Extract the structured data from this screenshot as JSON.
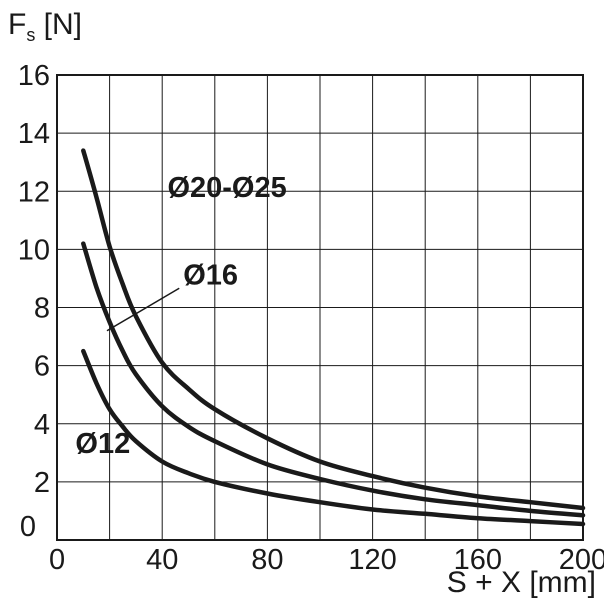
{
  "chart_data": {
    "type": "line",
    "title": "",
    "ylabel": {
      "main": "F",
      "sub": "s",
      "unit": "[N]"
    },
    "xlabel": "S + X [mm]",
    "xlim": [
      0,
      200
    ],
    "ylim": [
      0,
      16
    ],
    "x_ticks": [
      0,
      40,
      80,
      120,
      160,
      200
    ],
    "y_ticks": [
      0,
      2,
      4,
      6,
      8,
      10,
      12,
      14,
      16
    ],
    "grid": true,
    "legend": "none",
    "series": [
      {
        "name": "Ø20-Ø25",
        "x": [
          10,
          15,
          20,
          25,
          30,
          40,
          50,
          60,
          80,
          100,
          120,
          140,
          160,
          180,
          200
        ],
        "y": [
          13.4,
          11.8,
          10.1,
          8.8,
          7.7,
          6.1,
          5.2,
          4.5,
          3.5,
          2.7,
          2.2,
          1.8,
          1.5,
          1.3,
          1.1
        ]
      },
      {
        "name": "Ø16",
        "x": [
          10,
          15,
          20,
          25,
          30,
          40,
          50,
          60,
          80,
          100,
          120,
          140,
          160,
          180,
          200
        ],
        "y": [
          10.2,
          8.7,
          7.5,
          6.5,
          5.7,
          4.6,
          3.9,
          3.4,
          2.6,
          2.1,
          1.7,
          1.4,
          1.2,
          1.0,
          0.85
        ]
      },
      {
        "name": "Ø12",
        "x": [
          10,
          15,
          20,
          25,
          30,
          40,
          50,
          60,
          80,
          100,
          120,
          140,
          160,
          180,
          200
        ],
        "y": [
          6.5,
          5.4,
          4.5,
          3.9,
          3.4,
          2.7,
          2.3,
          2.0,
          1.6,
          1.3,
          1.05,
          0.9,
          0.75,
          0.65,
          0.55
        ]
      }
    ],
    "annotations": [
      {
        "text": "Ø20-Ø25",
        "x": 42,
        "y": 11.8,
        "series": 0
      },
      {
        "text": "Ø16",
        "x": 48,
        "y": 8.8,
        "series": 1,
        "leader_to": {
          "x": 19,
          "y": 7.2
        }
      },
      {
        "text": "Ø12",
        "x": 7,
        "y": 3.0,
        "series": 2
      }
    ],
    "colors": {
      "line": "#1a1a1a",
      "grid": "#1a1a1a",
      "background": "#ffffff"
    }
  }
}
